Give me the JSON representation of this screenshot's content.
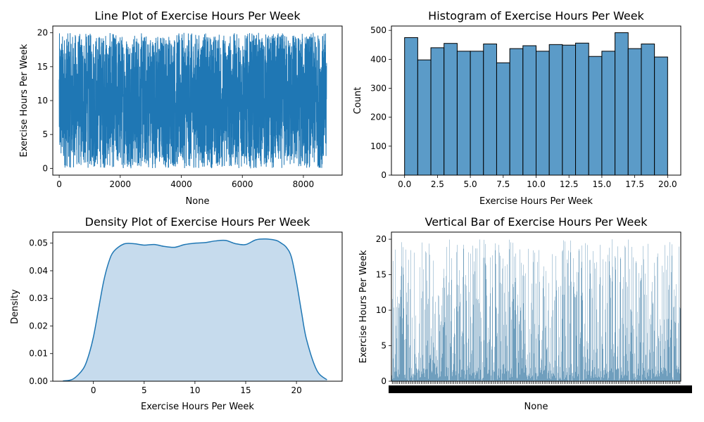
{
  "figure": {
    "background": "#ffffff"
  },
  "chart_data": [
    {
      "id": "line",
      "type": "line",
      "title": "Line Plot of Exercise Hours Per Week",
      "xlabel": "None",
      "ylabel": "Exercise Hours Per Week",
      "xlim": [
        -210,
        9270
      ],
      "ylim": [
        -1,
        21
      ],
      "xticks": [
        0,
        2000,
        4000,
        6000,
        8000
      ],
      "yticks": [
        0,
        5,
        10,
        15,
        20
      ],
      "n_points": 8763,
      "value_range": [
        0,
        20
      ],
      "color": "#1f77b4"
    },
    {
      "id": "hist",
      "type": "bar",
      "title": "Histogram of Exercise Hours Per Week",
      "xlabel": "Exercise Hours Per Week",
      "ylabel": "Count",
      "xlim": [
        -1,
        21
      ],
      "ylim": [
        0,
        515
      ],
      "xticks": [
        0.0,
        2.5,
        5.0,
        7.5,
        10.0,
        12.5,
        15.0,
        17.5,
        20.0
      ],
      "xtick_labels": [
        "0.0",
        "2.5",
        "5.0",
        "7.5",
        "10.0",
        "12.5",
        "15.0",
        "17.5",
        "20.0"
      ],
      "yticks": [
        0,
        100,
        200,
        300,
        400,
        500
      ],
      "bin_edges": [
        0,
        1,
        2,
        3,
        4,
        5,
        6,
        7,
        8,
        9,
        10,
        11,
        12,
        13,
        14,
        15,
        16,
        17,
        18,
        19,
        20
      ],
      "values": [
        475,
        398,
        440,
        455,
        428,
        428,
        453,
        388,
        437,
        447,
        428,
        451,
        449,
        456,
        410,
        428,
        492,
        437,
        453,
        408
      ],
      "color": "#5b9bc8"
    },
    {
      "id": "density",
      "type": "area",
      "title": "Density Plot of Exercise Hours Per Week",
      "xlabel": "Exercise Hours Per Week",
      "ylabel": "Density",
      "xlim": [
        -4,
        24.5
      ],
      "ylim": [
        0,
        0.054
      ],
      "xticks": [
        0,
        5,
        10,
        15,
        20
      ],
      "yticks": [
        0.0,
        0.01,
        0.02,
        0.03,
        0.04,
        0.05
      ],
      "ytick_labels": [
        "0.00",
        "0.01",
        "0.02",
        "0.03",
        "0.04",
        "0.05"
      ],
      "x": [
        -3,
        -2,
        -1,
        -0.5,
        0,
        0.5,
        1,
        1.5,
        2,
        3,
        4,
        5,
        6,
        7,
        8,
        9,
        10,
        11,
        12,
        13,
        14,
        15,
        16,
        17,
        18,
        18.5,
        19,
        19.5,
        20,
        20.5,
        21,
        22,
        23
      ],
      "y": [
        0.0001,
        0.0008,
        0.0045,
        0.009,
        0.016,
        0.026,
        0.036,
        0.043,
        0.047,
        0.0497,
        0.0498,
        0.0493,
        0.0495,
        0.0488,
        0.0485,
        0.0495,
        0.05,
        0.0502,
        0.0508,
        0.051,
        0.0498,
        0.0495,
        0.0512,
        0.0515,
        0.051,
        0.05,
        0.0485,
        0.045,
        0.036,
        0.025,
        0.015,
        0.004,
        0.0005
      ],
      "color": "#1f77b4",
      "fill": "#c6dbed"
    },
    {
      "id": "vbar",
      "type": "bar",
      "title": "Vertical Bar of Exercise Hours Per Week",
      "xlabel": "None",
      "ylabel": "Exercise Hours Per Week",
      "ylim": [
        0,
        21
      ],
      "yticks": [
        0,
        5,
        10,
        15,
        20
      ],
      "n_bars": 8763,
      "value_range": [
        0,
        20
      ],
      "color": "#3274a1"
    }
  ]
}
